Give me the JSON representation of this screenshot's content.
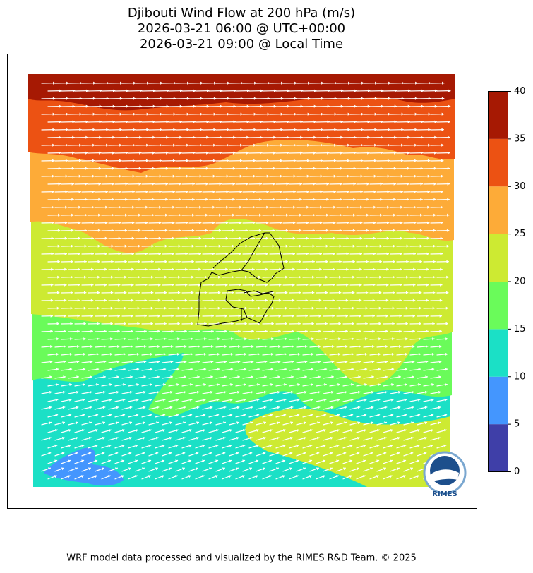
{
  "title": [
    "Djibouti Wind Flow at 200 hPa (m/s)",
    "2026-03-21 06:00 @ UTC+00:00",
    "2026-03-21 09:00 @ Local Time"
  ],
  "colorbar": {
    "ticks": [
      0,
      5,
      10,
      15,
      20,
      25,
      30,
      35,
      40
    ],
    "colors": [
      "#3f3fa8",
      "#4496fe",
      "#1be0c6",
      "#6afb5a",
      "#cdea32",
      "#fdab38",
      "#ec5213",
      "#a61903"
    ]
  },
  "logo_text": "RIMES",
  "footer": "WRF model data processed and visualized by the RIMES R&D Team. © 2025"
}
